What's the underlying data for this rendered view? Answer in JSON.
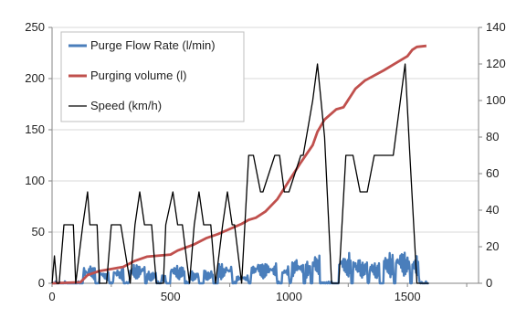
{
  "chart_data": {
    "type": "line",
    "title": "",
    "xlabel": "",
    "ylabel": "",
    "y2label": "",
    "xlim": [
      0,
      1800
    ],
    "ylim": [
      0,
      250
    ],
    "y2lim": [
      0,
      140
    ],
    "xticks": [
      0,
      500,
      1000,
      1500
    ],
    "yticks": [
      0,
      50,
      100,
      150,
      200,
      250
    ],
    "y2ticks": [
      0,
      20,
      40,
      60,
      80,
      100,
      120,
      140
    ],
    "grid": "horizontal",
    "legend_position": "top-left",
    "series": [
      {
        "name": "Purge Flow Rate (l/min)",
        "axis": "left",
        "color": "#4a7ebb",
        "style": "noisy",
        "segments": [
          [
            130,
            180,
            18
          ],
          [
            200,
            240,
            12
          ],
          [
            260,
            300,
            15
          ],
          [
            330,
            390,
            20
          ],
          [
            400,
            440,
            12
          ],
          [
            460,
            480,
            8
          ],
          [
            500,
            560,
            18
          ],
          [
            580,
            620,
            12
          ],
          [
            640,
            680,
            14
          ],
          [
            700,
            760,
            20
          ],
          [
            780,
            830,
            8
          ],
          [
            840,
            950,
            22
          ],
          [
            970,
            1000,
            18
          ],
          [
            1010,
            1060,
            26
          ],
          [
            1070,
            1090,
            22
          ],
          [
            1100,
            1130,
            30
          ],
          [
            1210,
            1260,
            30
          ],
          [
            1270,
            1330,
            26
          ],
          [
            1340,
            1380,
            22
          ],
          [
            1400,
            1440,
            30
          ],
          [
            1450,
            1510,
            32
          ],
          [
            1520,
            1550,
            30
          ]
        ]
      },
      {
        "name": "Purging volume (l)",
        "axis": "left",
        "color": "#c0504d",
        "x": [
          0,
          120,
          150,
          200,
          300,
          350,
          400,
          500,
          530,
          600,
          650,
          700,
          760,
          800,
          830,
          860,
          900,
          950,
          1000,
          1050,
          1100,
          1120,
          1150,
          1200,
          1230,
          1280,
          1320,
          1400,
          1450,
          1500,
          1520,
          1540,
          1580
        ],
        "y": [
          0,
          1,
          8,
          12,
          16,
          22,
          26,
          28,
          32,
          38,
          44,
          48,
          54,
          58,
          62,
          64,
          70,
          82,
          100,
          118,
          135,
          148,
          160,
          170,
          172,
          190,
          198,
          208,
          215,
          222,
          228,
          231,
          232
        ]
      },
      {
        "name": "Speed (km/h)",
        "axis": "right",
        "color": "#000000",
        "x": [
          0,
          10,
          20,
          30,
          50,
          90,
          100,
          130,
          150,
          160,
          190,
          200,
          230,
          250,
          290,
          330,
          350,
          370,
          390,
          420,
          440,
          470,
          480,
          510,
          530,
          550,
          580,
          600,
          620,
          640,
          670,
          690,
          720,
          740,
          760,
          770,
          800,
          830,
          850,
          880,
          890,
          940,
          960,
          980,
          1000,
          1050,
          1060,
          1100,
          1120,
          1150,
          1180,
          1210,
          1240,
          1270,
          1300,
          1330,
          1360,
          1400,
          1440,
          1470,
          1490,
          1510,
          1540,
          1560,
          1570,
          1590
        ],
        "y": [
          0,
          15,
          0,
          0,
          32,
          32,
          0,
          32,
          50,
          32,
          32,
          0,
          0,
          32,
          32,
          0,
          32,
          50,
          32,
          32,
          0,
          0,
          32,
          50,
          32,
          32,
          0,
          32,
          50,
          32,
          32,
          0,
          32,
          50,
          32,
          32,
          0,
          70,
          70,
          50,
          50,
          70,
          70,
          50,
          50,
          70,
          70,
          100,
          120,
          80,
          0,
          0,
          70,
          70,
          50,
          50,
          70,
          70,
          70,
          100,
          120,
          70,
          0,
          0,
          0,
          0
        ]
      }
    ]
  }
}
